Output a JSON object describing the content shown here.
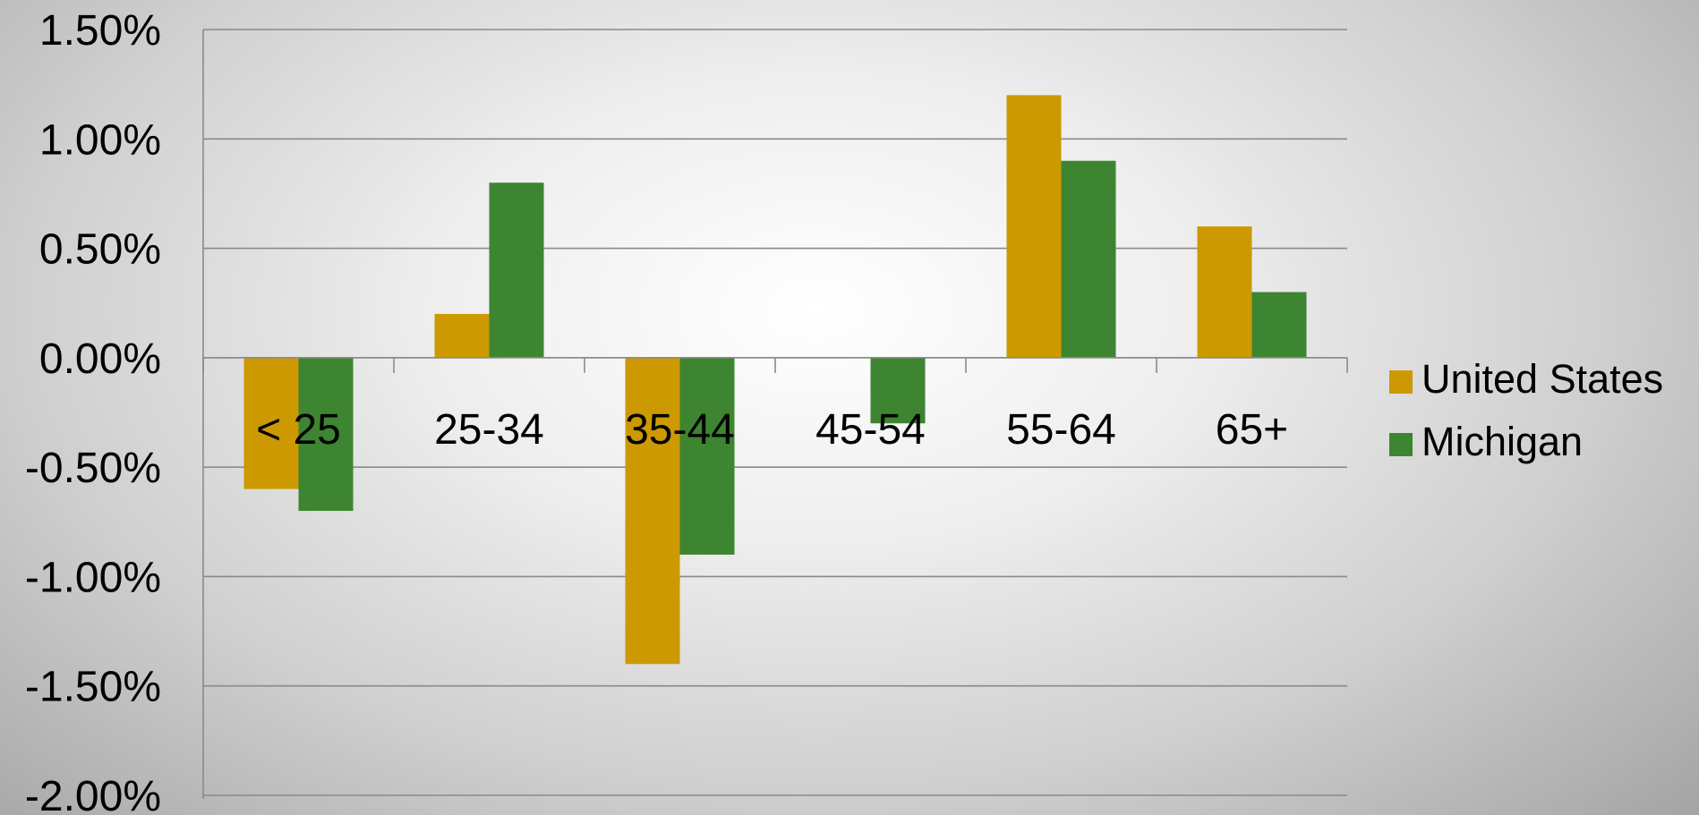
{
  "chart_data": {
    "type": "bar",
    "categories": [
      "< 25",
      "25-34",
      "35-44",
      "45-54",
      "55-64",
      "65+"
    ],
    "series": [
      {
        "name": "United States",
        "color": "#cc9900",
        "values": [
          -0.6,
          0.2,
          -1.4,
          0.0,
          1.2,
          0.6
        ]
      },
      {
        "name": "Michigan",
        "color": "#3d8530",
        "values": [
          -0.7,
          0.8,
          -0.9,
          -0.3,
          0.9,
          0.3
        ]
      }
    ],
    "ylim": [
      -2.0,
      1.5
    ],
    "yticks": [
      {
        "value": 1.5,
        "label": "1.50%"
      },
      {
        "value": 1.0,
        "label": "1.00%"
      },
      {
        "value": 0.5,
        "label": "0.50%"
      },
      {
        "value": 0.0,
        "label": "0.00%"
      },
      {
        "value": -0.5,
        "label": "-0.50%"
      },
      {
        "value": -1.0,
        "label": "-1.00%"
      },
      {
        "value": -1.5,
        "label": "-1.50%"
      },
      {
        "value": -2.0,
        "label": "-2.00%"
      }
    ],
    "grid": true,
    "legend_position": "right"
  }
}
